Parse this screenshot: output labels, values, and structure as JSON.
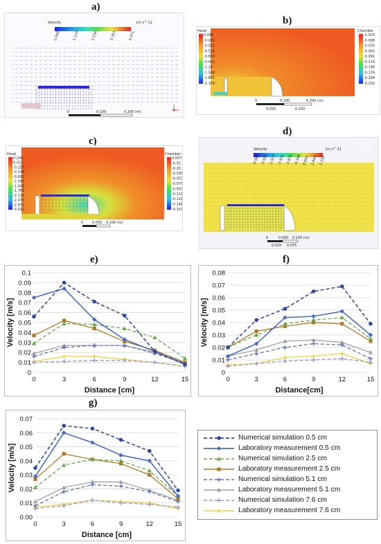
{
  "panels": {
    "a": {
      "label": "a)",
      "colorbar_title": "Velocity",
      "unit": "[m s^-1]",
      "ticks": [
        "0.000",
        "1.119",
        "2.236",
        "3.353",
        "4.471"
      ],
      "scale": [
        "0",
        "0.100",
        "0.200 (m)",
        "0.050",
        "0.150"
      ]
    },
    "b": {
      "label": "b)",
      "head_title": "Head",
      "head_ticks": [
        "0.080",
        "-0.265",
        "-0.021",
        "-0.524",
        "-0.854",
        "-0.932",
        "-1.24",
        "-1.548",
        "-1.855",
        "-2.159"
      ],
      "head_unit": "[m s^-1]",
      "chamber_title": "Chamber",
      "chamber_ticks": [
        "-0.023",
        "-0.006",
        "-0.035",
        "-0.063",
        "-0.091",
        "-0.119",
        "-0.148",
        "-0.176",
        "-0.204",
        "-0.232"
      ],
      "chamber_unit": "[m s^-1]",
      "scale": [
        "0",
        "0.100",
        "0.200 (m)",
        "0.050",
        "0.150"
      ]
    },
    "c": {
      "label": "c)",
      "head_title": "Head",
      "head_ticks": [
        "0.200",
        "0.021",
        "-0.157",
        "-0.336",
        "-0.692",
        "-1.049",
        "-1.406",
        "-1.763",
        "-2.119",
        "-2.476",
        "-2.833",
        "-3.011"
      ],
      "head_unit": "[m s^-1]",
      "chamber_title": "Chamber",
      "chamber_ticks": [
        "0.007",
        "-0.02",
        "-0.20",
        "-0.038",
        "-0.057",
        "-0.075",
        "-0.093",
        "-0.111",
        "-0.129",
        "-0.148",
        "-0.157"
      ],
      "chamber_unit": "[m s^-1]",
      "scale": [
        "0",
        "0.050",
        "0.100 (m)",
        "0.025",
        "0.075"
      ]
    },
    "d": {
      "label": "d)",
      "colorbar_title": "Velocity",
      "unit": "[m s^-1]",
      "brand": "ANSYS",
      "brand_sub": "R19.2",
      "ticks": [
        "-4.068",
        "-3.528",
        "-2.977",
        "-2.426",
        "-1.875",
        "-0.148",
        "0.604",
        "1.644",
        "2.220"
      ],
      "scale": [
        "0",
        "0.050",
        "0.100 (m)",
        "0.025",
        "0.075"
      ]
    }
  },
  "colors": {
    "sim_05": "#2f4b9a",
    "lab_05": "#4a6cc4",
    "sim_25": "#6aa84f",
    "lab_25": "#b07a26",
    "sim_51": "#5b74b8",
    "lab_51": "#a0a0a0",
    "sim_76": "#a48fd0",
    "lab_76": "#e8d43a"
  },
  "chart_data": [
    {
      "id": "e",
      "panel_label": "e)",
      "type": "line",
      "xlabel": "Distance [cm]",
      "ylabel": "Velocity [m/s]",
      "x": [
        0,
        3,
        6,
        9,
        12,
        15
      ],
      "xlim": [
        0,
        15
      ],
      "ylim": [
        0,
        0.1
      ],
      "yticks": [
        "0",
        "0.01",
        "0.02",
        "0.03",
        "0.04",
        "0.05",
        "0.06",
        "0.07",
        "0.08",
        "0.09",
        "0.1"
      ],
      "xticks": [
        "0",
        "3",
        "6",
        "9",
        "12",
        "15"
      ],
      "grid": true,
      "series": [
        {
          "name": "Numerical simulation 0.5 cm",
          "values": [
            0.056,
            0.09,
            0.071,
            0.057,
            0.021,
            0.008
          ]
        },
        {
          "name": "Laboratory measurement 0.5 cm",
          "values": [
            0.075,
            0.084,
            0.053,
            0.033,
            0.021,
            0.008
          ]
        },
        {
          "name": "Numerical simulation 2.5 cm",
          "values": [
            0.029,
            0.049,
            0.048,
            0.044,
            0.035,
            0.014
          ]
        },
        {
          "name": "Laboratory measurement 2.5 cm",
          "values": [
            0.037,
            0.052,
            0.044,
            0.031,
            0.022,
            0.01
          ]
        },
        {
          "name": "Numerical simulation 5.1 cm",
          "values": [
            0.016,
            0.025,
            0.027,
            0.027,
            0.019,
            0.009
          ]
        },
        {
          "name": "Laboratory measurement 5.1 cm",
          "values": [
            0.019,
            0.027,
            0.027,
            0.027,
            0.02,
            0.01
          ]
        },
        {
          "name": "Numerical simulation 7.6 cm",
          "values": [
            0.01,
            0.011,
            0.012,
            0.012,
            0.01,
            0.006
          ]
        },
        {
          "name": "Laboratory measurement 7.6 cm",
          "values": [
            0.011,
            0.016,
            0.016,
            0.013,
            0.01,
            0.006
          ]
        }
      ]
    },
    {
      "id": "f",
      "panel_label": "f)",
      "type": "line",
      "xlabel": "Distance[cm]",
      "ylabel": "Velocity [m/s]",
      "x": [
        0,
        3,
        6,
        9,
        12,
        15
      ],
      "xlim": [
        0,
        15
      ],
      "ylim": [
        0,
        0.08
      ],
      "yticks": [
        "0",
        "0.01",
        "0.02",
        "0.03",
        "0.04",
        "0.05",
        "0.06",
        "0.07",
        "0.08"
      ],
      "xticks": [
        "0",
        "3",
        "6",
        "9",
        "12",
        "15"
      ],
      "grid": true,
      "series": [
        {
          "name": "Numerical simulation 0.5 cm",
          "values": [
            0.02,
            0.042,
            0.051,
            0.065,
            0.069,
            0.039
          ]
        },
        {
          "name": "Laboratory measurement 0.5 cm",
          "values": [
            0.013,
            0.023,
            0.044,
            0.045,
            0.049,
            0.03
          ]
        },
        {
          "name": "Numerical simulation 2.5 cm",
          "values": [
            0.02,
            0.03,
            0.039,
            0.042,
            0.044,
            0.027
          ]
        },
        {
          "name": "Laboratory measurement 2.5 cm",
          "values": [
            0.02,
            0.033,
            0.037,
            0.04,
            0.039,
            0.025
          ]
        },
        {
          "name": "Numerical simulation 5.1 cm",
          "values": [
            0.01,
            0.015,
            0.02,
            0.023,
            0.022,
            0.011
          ]
        },
        {
          "name": "Laboratory measurement 5.1 cm",
          "values": [
            0.013,
            0.018,
            0.025,
            0.026,
            0.024,
            0.016
          ]
        },
        {
          "name": "Numerical simulation 7.6 cm",
          "values": [
            0.005,
            0.007,
            0.009,
            0.01,
            0.011,
            0.008
          ]
        },
        {
          "name": "Laboratory measurement 7.6 cm",
          "values": [
            0.006,
            0.007,
            0.012,
            0.013,
            0.015,
            0.007
          ]
        }
      ]
    },
    {
      "id": "g",
      "panel_label": "g)",
      "type": "line",
      "xlabel": "Distance [cm]",
      "ylabel": "Velocity [m/s]",
      "x": [
        0,
        3,
        6,
        9,
        12,
        15
      ],
      "xlim": [
        0,
        15
      ],
      "ylim": [
        0,
        0.07
      ],
      "yticks": [
        "0.00",
        "0.01",
        "0.02",
        "0.03",
        "0.04",
        "0.05",
        "0.06",
        "0.07"
      ],
      "xticks": [
        "0",
        "3",
        "6",
        "9",
        "12",
        "15"
      ],
      "grid": true,
      "series": [
        {
          "name": "Numerical simulation 0.5 cm",
          "values": [
            0.035,
            0.065,
            0.063,
            0.055,
            0.047,
            0.019
          ]
        },
        {
          "name": "Laboratory measurement 0.5 cm",
          "values": [
            0.029,
            0.06,
            0.053,
            0.044,
            0.04,
            0.015
          ]
        },
        {
          "name": "Numerical simulation 2.5 cm",
          "values": [
            0.021,
            0.037,
            0.041,
            0.04,
            0.033,
            0.015
          ]
        },
        {
          "name": "Laboratory measurement 2.5 cm",
          "values": [
            0.027,
            0.045,
            0.041,
            0.038,
            0.03,
            0.013
          ]
        },
        {
          "name": "Numerical simulation 5.1 cm",
          "values": [
            0.008,
            0.018,
            0.023,
            0.022,
            0.018,
            0.011
          ]
        },
        {
          "name": "Laboratory measurement 5.1 cm",
          "values": [
            0.011,
            0.021,
            0.025,
            0.025,
            0.019,
            0.012
          ]
        },
        {
          "name": "Numerical simulation 7.6 cm",
          "values": [
            0.006,
            0.008,
            0.012,
            0.01,
            0.009,
            0.007
          ]
        },
        {
          "name": "Laboratory measurement 7.6 cm",
          "values": [
            0.007,
            0.009,
            0.012,
            0.011,
            0.01,
            0.006
          ]
        }
      ]
    }
  ],
  "legend": [
    "Numerical simulation 0.5 cm",
    "Laboratory measurement 0.5 cm",
    "Numerical simulation 2.5 cm",
    "Laboratory measurement 2.5 cm",
    "Numerical simulation 5.1 cm",
    "Laboratory measurement 5.1 cm",
    "Numerical simulation 7.6 cm",
    "Laboratory measurement 7.6 cm"
  ]
}
